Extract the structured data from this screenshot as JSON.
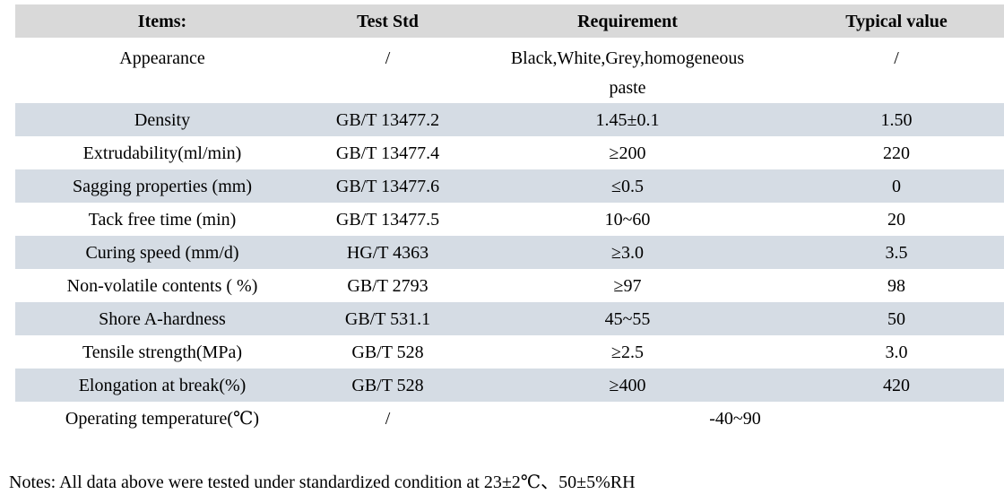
{
  "table": {
    "headers": [
      "Items:",
      "Test Std",
      "Requirement",
      "Typical value"
    ],
    "rows": [
      {
        "item": "Appearance",
        "test_std": "/",
        "requirement": "Black,White,Grey,homogeneous\npaste",
        "typical": "/"
      },
      {
        "item": "Density",
        "test_std": "GB/T 13477.2",
        "requirement": "1.45±0.1",
        "typical": "1.50"
      },
      {
        "item": "Extrudability(ml/min)",
        "test_std": "GB/T 13477.4",
        "requirement": "≥200",
        "typical": "220"
      },
      {
        "item": "Sagging properties (mm)",
        "test_std": "GB/T 13477.6",
        "requirement": "≤0.5",
        "typical": "0"
      },
      {
        "item": "Tack free time (min)",
        "test_std": "GB/T 13477.5",
        "requirement": "10~60",
        "typical": "20"
      },
      {
        "item": "Curing speed (mm/d)",
        "test_std": "HG/T 4363",
        "requirement": "≥3.0",
        "typical": "3.5"
      },
      {
        "item": "Non-volatile contents ( %)",
        "test_std": "GB/T 2793",
        "requirement": "≥97",
        "typical": "98"
      },
      {
        "item": "Shore A-hardness",
        "test_std": "GB/T 531.1",
        "requirement": "45~55",
        "typical": "50"
      },
      {
        "item": "Tensile strength(MPa)",
        "test_std": "GB/T 528",
        "requirement": "≥2.5",
        "typical": "3.0"
      },
      {
        "item": "Elongation at break(%)",
        "test_std": "GB/T 528",
        "requirement": "≥400",
        "typical": "420"
      },
      {
        "item": "Operating temperature(℃)",
        "test_std": "/",
        "requirement_merged": "-40~90"
      }
    ]
  },
  "notes": {
    "text": "Notes: All data above were tested under standardized condition at 23±2℃、50±5%RH"
  },
  "colors": {
    "header_bg": "#d9d9d9",
    "stripe_bg": "#d5dce4",
    "text": "#000000"
  }
}
